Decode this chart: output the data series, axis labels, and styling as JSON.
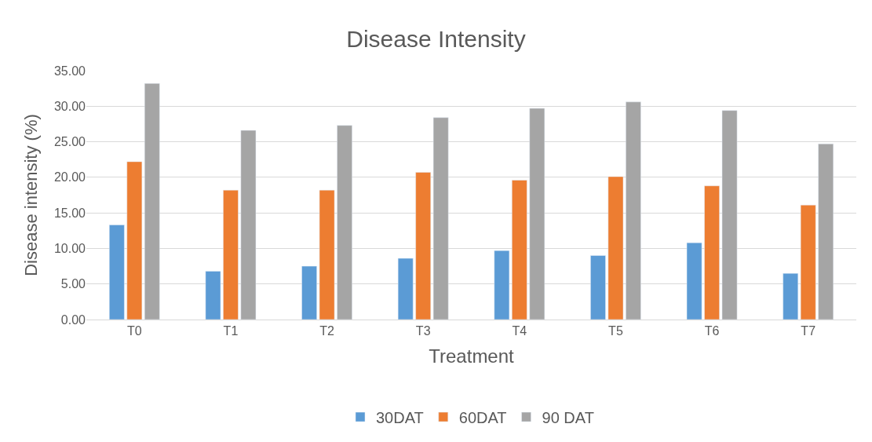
{
  "chart_data": {
    "type": "bar",
    "title": "Disease Intensity",
    "xlabel": "Treatment",
    "ylabel": "Disease intensity (%)",
    "categories": [
      "T0",
      "T1",
      "T2",
      "T3",
      "T4",
      "T5",
      "T6",
      "T7"
    ],
    "series": [
      {
        "name": "30DAT",
        "color": "#5b9bd5",
        "values": [
          13.3,
          6.8,
          7.5,
          8.6,
          9.7,
          9.0,
          10.8,
          6.5
        ]
      },
      {
        "name": "60DAT",
        "color": "#ed7d31",
        "values": [
          22.2,
          18.2,
          18.2,
          20.7,
          19.6,
          20.1,
          18.8,
          16.1
        ]
      },
      {
        "name": "90 DAT",
        "color": "#a5a5a5",
        "values": [
          33.2,
          26.6,
          27.3,
          28.4,
          29.7,
          30.6,
          29.4,
          24.7
        ]
      }
    ],
    "ylim": [
      0,
      35
    ],
    "yticks": [
      {
        "value": 0,
        "label": "0.00"
      },
      {
        "value": 5,
        "label": "5.00"
      },
      {
        "value": 10,
        "label": "10.00"
      },
      {
        "value": 15,
        "label": "15.00"
      },
      {
        "value": 20,
        "label": "20.00"
      },
      {
        "value": 25,
        "label": "25.00"
      },
      {
        "value": 30,
        "label": "30.00"
      },
      {
        "value": 35,
        "label": "35.00"
      }
    ],
    "grid": "y",
    "legend": "bottom"
  }
}
